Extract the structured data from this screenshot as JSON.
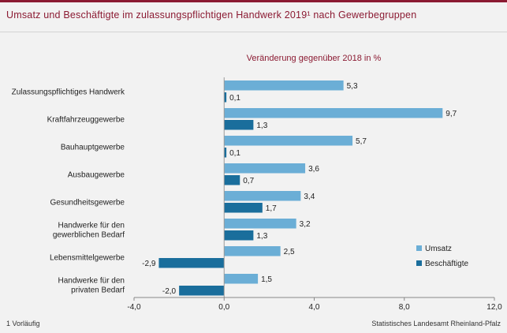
{
  "header": {
    "title": "Umsatz und Beschäftigte im zulassungspflichtigen Handwerk 2019¹ nach Gewerbegruppen"
  },
  "footer": {
    "footnote": "1 Vorläufig",
    "source": "Statistisches Landesamt Rheinland-Pfalz"
  },
  "chart_data": {
    "type": "bar",
    "orientation": "horizontal",
    "subtitle": "Veränderung gegenüber 2018 in %",
    "categories": [
      [
        "Zulassungspflichtiges Handwerk"
      ],
      [
        "Kraftfahrzeuggewerbe"
      ],
      [
        "Bauhauptgewerbe"
      ],
      [
        "Ausbaugewerbe"
      ],
      [
        "Gesundheitsgewerbe"
      ],
      [
        "Handwerke für den",
        "gewerblichen Bedarf"
      ],
      [
        "Lebensmittelgewerbe"
      ],
      [
        "Handwerke für den",
        "privaten Bedarf"
      ]
    ],
    "series": [
      {
        "name": "Umsatz",
        "color": "#6baed6",
        "values": [
          5.3,
          9.7,
          5.7,
          3.6,
          3.4,
          3.2,
          2.5,
          1.5
        ],
        "labels": [
          "5,3",
          "9,7",
          "5,7",
          "3,6",
          "3,4",
          "3,2",
          "2,5",
          "1,5"
        ]
      },
      {
        "name": "Beschäftigte",
        "color": "#1a6e9c",
        "values": [
          0.1,
          1.3,
          0.1,
          0.7,
          1.7,
          1.3,
          -2.9,
          -2.0
        ],
        "labels": [
          "0,1",
          "1,3",
          "0,1",
          "0,7",
          "1,7",
          "1,3",
          "-2,9",
          "-2,0"
        ]
      }
    ],
    "xlim": [
      -4.0,
      12.0
    ],
    "xticks": [
      -4.0,
      0.0,
      4.0,
      8.0,
      12.0
    ],
    "xtick_labels": [
      "-4,0",
      "0,0",
      "4,0",
      "8,0",
      "12,0"
    ],
    "grid": false,
    "legend": "right"
  }
}
